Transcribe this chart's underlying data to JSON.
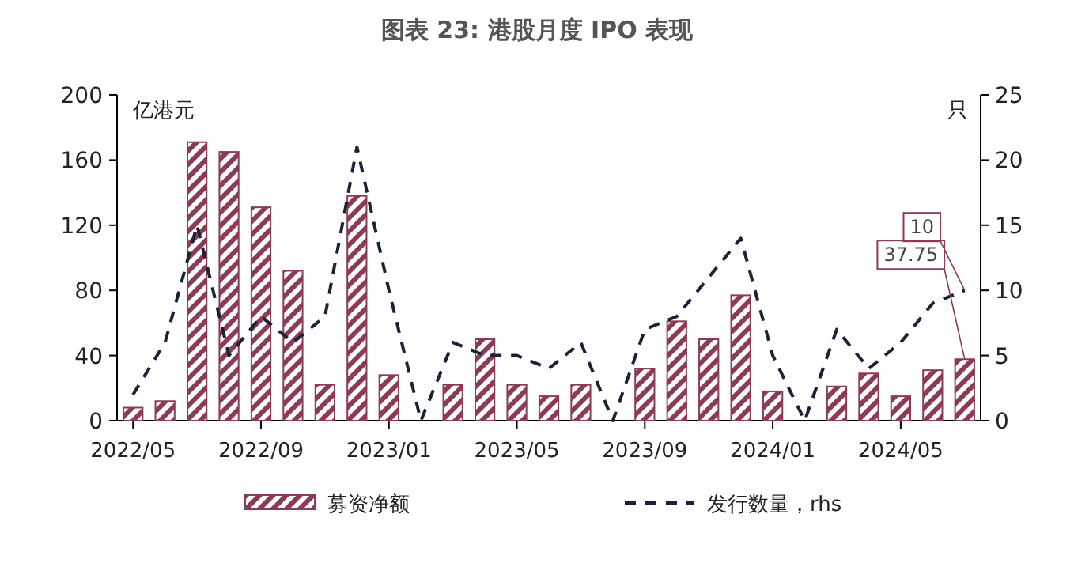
{
  "chart_data": {
    "type": "bar",
    "title": "图表 23: 港股月度 IPO 表现",
    "ylabel": "亿港元",
    "y2label": "只",
    "categories": [
      "2022/05",
      null,
      null,
      null,
      "2022/09",
      null,
      null,
      null,
      "2023/01",
      null,
      null,
      null,
      "2023/05",
      null,
      null,
      null,
      "2023/09",
      null,
      null,
      null,
      "2024/01",
      null,
      null,
      null,
      "2024/05",
      null,
      null
    ],
    "series": [
      {
        "name": "募资净额",
        "color": "#8c3b57",
        "values": [
          8,
          12,
          171,
          165,
          131,
          92,
          22,
          138,
          28,
          0,
          22,
          50,
          22,
          15,
          22,
          0,
          32,
          61,
          50,
          77,
          18,
          0,
          21,
          29,
          15,
          31,
          37.75
        ],
        "value_labels": [
          null,
          null,
          null,
          null,
          null,
          null,
          null,
          null,
          null,
          null,
          null,
          null,
          null,
          null,
          null,
          null,
          null,
          null,
          null,
          null,
          null,
          null,
          null,
          null,
          null,
          null,
          "37.75"
        ]
      },
      {
        "name": "发行数量，rhs",
        "type": "line",
        "axis": "y2",
        "color": "#1a2238",
        "line_style": "dashed",
        "marker": "none",
        "values": [
          2,
          6,
          15,
          5,
          8,
          6,
          8,
          21,
          10,
          0,
          6,
          5,
          5,
          4,
          6,
          0,
          7,
          8,
          11,
          14,
          5,
          0,
          7,
          4,
          6,
          9,
          10
        ],
        "value_labels": [
          null,
          null,
          null,
          null,
          null,
          null,
          null,
          null,
          null,
          null,
          null,
          null,
          null,
          null,
          null,
          null,
          null,
          null,
          null,
          null,
          null,
          null,
          null,
          null,
          null,
          null,
          "10"
        ]
      }
    ],
    "ylim": [
      0,
      200
    ],
    "yticks": [
      0,
      40,
      80,
      120,
      160,
      200
    ],
    "y2lim": [
      0,
      25
    ],
    "y2ticks": [
      0,
      5,
      10,
      15,
      20,
      25
    ],
    "grid": false,
    "legend": "bottom"
  }
}
